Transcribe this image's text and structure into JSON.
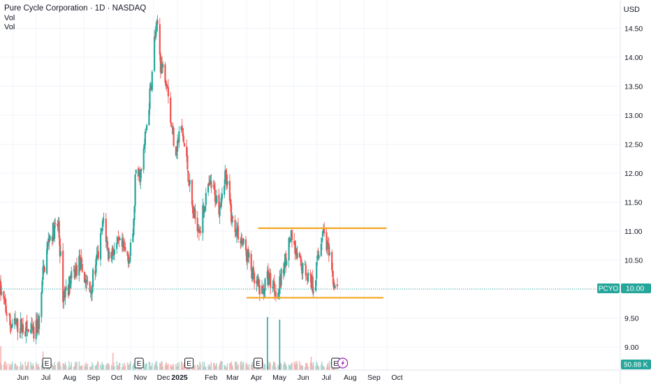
{
  "header": {
    "title": "Pure Cycle Corporation · 1D · NASDAQ",
    "vol_label_1": "Vol",
    "vol_label_2": "Vol",
    "currency": "USD"
  },
  "price_tag": {
    "symbol": "PCYO",
    "value": "10.00"
  },
  "volume_tag": "50.88 K",
  "colors": {
    "up": "#26a69a",
    "down": "#ef5350",
    "up_vol": "#a5d6cf",
    "down_vol": "#f7b3b1",
    "grid": "#f0f3fa",
    "level_line": "#f5a623",
    "price_line": "#26a69a",
    "flash": "#9c27b0"
  },
  "chart_data": {
    "type": "candlestick",
    "title": "Pure Cycle Corporation · 1D · NASDAQ",
    "ylabel": "USD",
    "ylim": [
      8.82,
      14.75
    ],
    "y_ticks": [
      "9.00",
      "9.50",
      "10.00",
      "10.50",
      "11.00",
      "11.50",
      "12.00",
      "12.50",
      "13.00",
      "13.50",
      "14.00",
      "14.50"
    ],
    "x_ticks": [
      {
        "label": "Jun",
        "bold": false
      },
      {
        "label": "Jul",
        "bold": false
      },
      {
        "label": "Aug",
        "bold": false
      },
      {
        "label": "Sep",
        "bold": false
      },
      {
        "label": "Oct",
        "bold": false
      },
      {
        "label": "Nov",
        "bold": false
      },
      {
        "label": "Dec",
        "bold": false
      },
      {
        "label": "2025",
        "bold": true
      },
      {
        "label": "Feb",
        "bold": false
      },
      {
        "label": "Mar",
        "bold": false
      },
      {
        "label": "Apr",
        "bold": false
      },
      {
        "label": "May",
        "bold": false
      },
      {
        "label": "Jun",
        "bold": false
      },
      {
        "label": "Jul",
        "bold": false
      },
      {
        "label": "Aug",
        "bold": false
      },
      {
        "label": "Sep",
        "bold": false
      },
      {
        "label": "Oct",
        "bold": false
      }
    ],
    "price_path": [
      [
        "2024-05-15",
        10.0
      ],
      [
        "2024-05-28",
        9.4
      ],
      [
        "2024-06-12",
        9.35
      ],
      [
        "2024-06-28",
        9.2
      ],
      [
        "2024-07-05",
        9.45
      ],
      [
        "2024-07-10",
        10.25
      ],
      [
        "2024-07-18",
        10.9
      ],
      [
        "2024-07-30",
        11.1
      ],
      [
        "2024-08-05",
        9.9
      ],
      [
        "2024-08-12",
        10.05
      ],
      [
        "2024-08-26",
        10.45
      ],
      [
        "2024-09-09",
        9.95
      ],
      [
        "2024-09-20",
        10.6
      ],
      [
        "2024-09-27",
        11.2
      ],
      [
        "2024-10-03",
        10.6
      ],
      [
        "2024-10-17",
        10.75
      ],
      [
        "2024-10-31",
        10.55
      ],
      [
        "2024-11-05",
        11.1
      ],
      [
        "2024-11-07",
        11.9
      ],
      [
        "2024-11-15",
        12.0
      ],
      [
        "2024-11-22",
        12.85
      ],
      [
        "2024-11-29",
        13.7
      ],
      [
        "2024-12-02",
        14.3
      ],
      [
        "2024-12-06",
        14.55
      ],
      [
        "2024-12-10",
        13.9
      ],
      [
        "2024-12-19",
        13.6
      ],
      [
        "2024-12-23",
        12.9
      ],
      [
        "2024-12-30",
        12.4
      ],
      [
        "2025-01-06",
        12.8
      ],
      [
        "2025-01-14",
        12.1
      ],
      [
        "2025-01-21",
        11.3
      ],
      [
        "2025-01-31",
        11.05
      ],
      [
        "2025-02-06",
        11.55
      ],
      [
        "2025-02-13",
        11.8
      ],
      [
        "2025-02-24",
        11.45
      ],
      [
        "2025-03-04",
        12.0
      ],
      [
        "2025-03-13",
        11.2
      ],
      [
        "2025-03-25",
        10.85
      ],
      [
        "2025-04-04",
        10.5
      ],
      [
        "2025-04-11",
        10.1
      ],
      [
        "2025-04-21",
        9.95
      ],
      [
        "2025-04-29",
        10.2
      ],
      [
        "2025-05-12",
        9.95
      ],
      [
        "2025-05-28",
        10.9
      ],
      [
        "2025-06-06",
        10.5
      ],
      [
        "2025-06-18",
        10.3
      ],
      [
        "2025-06-27",
        10.05
      ],
      [
        "2025-07-09",
        11.05
      ],
      [
        "2025-07-15",
        10.75
      ],
      [
        "2025-07-21",
        10.2
      ],
      [
        "2025-07-28",
        9.95
      ]
    ],
    "last_price": 10.0,
    "horizontal_levels": [
      {
        "value": 11.05,
        "from": "2025-04-16",
        "to": "2025-09-30"
      },
      {
        "value": 9.85,
        "from": "2025-04-01",
        "to": "2025-09-26"
      }
    ],
    "volume_spikes": [
      {
        "date": "2024-05-16",
        "value": 0.9
      },
      {
        "date": "2024-07-10",
        "value": 0.7
      },
      {
        "date": "2024-10-09",
        "value": 0.65
      },
      {
        "date": "2025-04-28",
        "value": 2.0
      },
      {
        "date": "2025-05-14",
        "value": 1.9
      },
      {
        "date": "2025-06-24",
        "value": 0.5
      }
    ],
    "events": [
      {
        "date": "2024-07-15",
        "label": "E"
      },
      {
        "date": "2024-11-12",
        "label": "E"
      },
      {
        "date": "2025-01-16",
        "label": "E"
      },
      {
        "date": "2025-04-16",
        "label": "E"
      },
      {
        "date": "2025-07-26",
        "label": "E"
      }
    ],
    "flash_icon": {
      "date": "2025-08-04",
      "name": "flash-icon"
    }
  }
}
